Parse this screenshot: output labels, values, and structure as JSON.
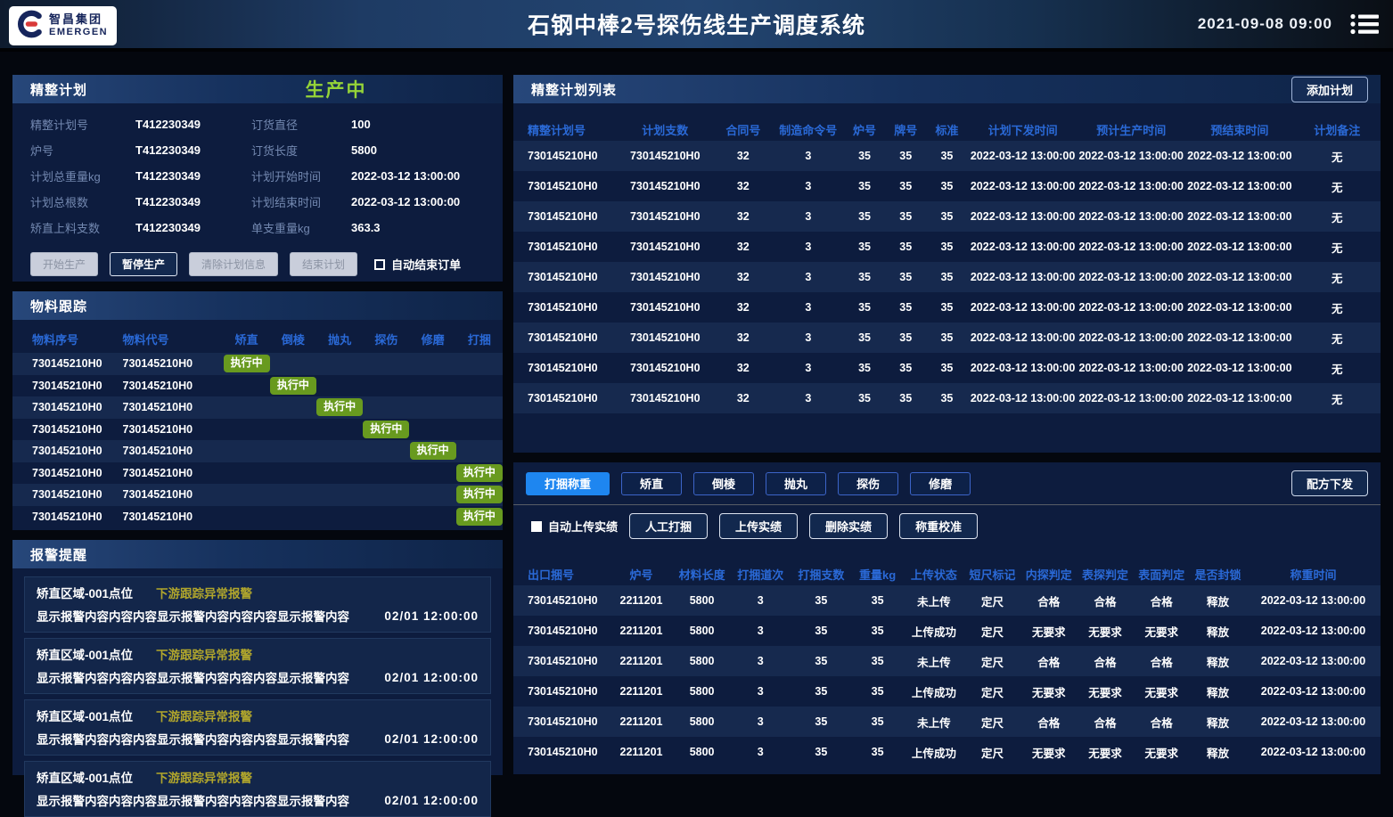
{
  "header": {
    "logo": {
      "company_cn": "智昌集团",
      "company_en": "EMERGEN"
    },
    "title": "石钢中棒2号探伤线生产调度系统",
    "datetime": "2021-09-08  09:00"
  },
  "colors": {
    "status_green": "#95d438",
    "badge_green": "#689a1f",
    "alarm_yellow": "#b1a62c",
    "active_tab_blue": "#1e86f0",
    "table_header_blue": "#2a69d6"
  },
  "finishing_plan": {
    "title": "精整计划",
    "status": "生产中",
    "fields_left": [
      {
        "label": "精整计划号",
        "value": "T412230349"
      },
      {
        "label": "炉号",
        "value": "T412230349"
      },
      {
        "label": "计划总重量kg",
        "value": "T412230349"
      },
      {
        "label": "计划总根数",
        "value": "T412230349"
      },
      {
        "label": "矫直上料支数",
        "value": "T412230349"
      }
    ],
    "fields_right": [
      {
        "label": "订货直径",
        "value": "100"
      },
      {
        "label": "订货长度",
        "value": "5800"
      },
      {
        "label": "计划开始时间",
        "value": "2022-03-12 13:00:00"
      },
      {
        "label": "计划结束时间",
        "value": "2022-03-12 13:00:00"
      },
      {
        "label": "单支重量kg",
        "value": "363.3"
      }
    ],
    "buttons": [
      {
        "label": "开始生产",
        "state": "disabled"
      },
      {
        "label": "暂停生产",
        "state": "enabled"
      },
      {
        "label": "清除计划信息",
        "state": "disabled"
      },
      {
        "label": "结束计划",
        "state": "disabled"
      }
    ],
    "checkbox_label": "自动结束订单"
  },
  "material_tracking": {
    "title": "物料跟踪",
    "columns": [
      "物料序号",
      "物料代号",
      "矫直",
      "倒棱",
      "抛丸",
      "探伤",
      "修磨",
      "打捆"
    ],
    "badge_label": "执行中",
    "rows": [
      {
        "seq": "730145210H0",
        "code": "730145210H0",
        "active_step": 0
      },
      {
        "seq": "730145210H0",
        "code": "730145210H0",
        "active_step": 1
      },
      {
        "seq": "730145210H0",
        "code": "730145210H0",
        "active_step": 2
      },
      {
        "seq": "730145210H0",
        "code": "730145210H0",
        "active_step": 3
      },
      {
        "seq": "730145210H0",
        "code": "730145210H0",
        "active_step": 4
      },
      {
        "seq": "730145210H0",
        "code": "730145210H0",
        "active_step": 5
      },
      {
        "seq": "730145210H0",
        "code": "730145210H0",
        "active_step": 5
      },
      {
        "seq": "730145210H0",
        "code": "730145210H0",
        "active_step": 5
      }
    ]
  },
  "alarms": {
    "title": "报警提醒",
    "items": [
      {
        "location": "矫直区域-001点位",
        "type": "下游跟踪异常报警",
        "content": "显示报警内容内容内容显示报警内容内容内容显示报警内容",
        "time": "02/01  12:00:00"
      },
      {
        "location": "矫直区域-001点位",
        "type": "下游跟踪异常报警",
        "content": "显示报警内容内容内容显示报警内容内容内容显示报警内容",
        "time": "02/01  12:00:00"
      },
      {
        "location": "矫直区域-001点位",
        "type": "下游跟踪异常报警",
        "content": "显示报警内容内容内容显示报警内容内容内容显示报警内容",
        "time": "02/01  12:00:00"
      },
      {
        "location": "矫直区域-001点位",
        "type": "下游跟踪异常报警",
        "content": "显示报警内容内容内容显示报警内容内容内容显示报警内容",
        "time": "02/01  12:00:00"
      }
    ]
  },
  "plan_list": {
    "title": "精整计划列表",
    "add_button": "添加计划",
    "columns": [
      "精整计划号",
      "计划支数",
      "合同号",
      "制造命令号",
      "炉号",
      "牌号",
      "标准",
      "计划下发时间",
      "预计生产时间",
      "预结束时间",
      "计划备注"
    ],
    "rows": [
      [
        "730145210H0",
        "730145210H0",
        "32",
        "3",
        "35",
        "35",
        "35",
        "2022-03-12 13:00:00",
        "2022-03-12 13:00:00",
        "2022-03-12 13:00:00",
        "无"
      ],
      [
        "730145210H0",
        "730145210H0",
        "32",
        "3",
        "35",
        "35",
        "35",
        "2022-03-12 13:00:00",
        "2022-03-12 13:00:00",
        "2022-03-12 13:00:00",
        "无"
      ],
      [
        "730145210H0",
        "730145210H0",
        "32",
        "3",
        "35",
        "35",
        "35",
        "2022-03-12 13:00:00",
        "2022-03-12 13:00:00",
        "2022-03-12 13:00:00",
        "无"
      ],
      [
        "730145210H0",
        "730145210H0",
        "32",
        "3",
        "35",
        "35",
        "35",
        "2022-03-12 13:00:00",
        "2022-03-12 13:00:00",
        "2022-03-12 13:00:00",
        "无"
      ],
      [
        "730145210H0",
        "730145210H0",
        "32",
        "3",
        "35",
        "35",
        "35",
        "2022-03-12 13:00:00",
        "2022-03-12 13:00:00",
        "2022-03-12 13:00:00",
        "无"
      ],
      [
        "730145210H0",
        "730145210H0",
        "32",
        "3",
        "35",
        "35",
        "35",
        "2022-03-12 13:00:00",
        "2022-03-12 13:00:00",
        "2022-03-12 13:00:00",
        "无"
      ],
      [
        "730145210H0",
        "730145210H0",
        "32",
        "3",
        "35",
        "35",
        "35",
        "2022-03-12 13:00:00",
        "2022-03-12 13:00:00",
        "2022-03-12 13:00:00",
        "无"
      ],
      [
        "730145210H0",
        "730145210H0",
        "32",
        "3",
        "35",
        "35",
        "35",
        "2022-03-12 13:00:00",
        "2022-03-12 13:00:00",
        "2022-03-12 13:00:00",
        "无"
      ],
      [
        "730145210H0",
        "730145210H0",
        "32",
        "3",
        "35",
        "35",
        "35",
        "2022-03-12 13:00:00",
        "2022-03-12 13:00:00",
        "2022-03-12 13:00:00",
        "无"
      ]
    ]
  },
  "process_panel": {
    "tabs": [
      "打捆称重",
      "矫直",
      "倒棱",
      "抛丸",
      "探伤",
      "修磨"
    ],
    "active_tab": 0,
    "recipe_button": "配方下发",
    "auto_upload_label": "自动上传实绩",
    "action_buttons": [
      "人工打捆",
      "上传实绩",
      "删除实绩",
      "称重校准"
    ],
    "table": {
      "columns": [
        "出口捆号",
        "炉号",
        "材料长度",
        "打捆道次",
        "打捆支数",
        "重量kg",
        "上传状态",
        "短尺标记",
        "内探判定",
        "表探判定",
        "表面判定",
        "是否封锁",
        "称重时间"
      ],
      "rows": [
        [
          "730145210H0",
          "2211201",
          "5800",
          "3",
          "35",
          "35",
          "未上传",
          "定尺",
          "合格",
          "合格",
          "合格",
          "释放",
          "2022-03-12 13:00:00"
        ],
        [
          "730145210H0",
          "2211201",
          "5800",
          "3",
          "35",
          "35",
          "上传成功",
          "定尺",
          "无要求",
          "无要求",
          "无要求",
          "释放",
          "2022-03-12 13:00:00"
        ],
        [
          "730145210H0",
          "2211201",
          "5800",
          "3",
          "35",
          "35",
          "未上传",
          "定尺",
          "合格",
          "合格",
          "合格",
          "释放",
          "2022-03-12 13:00:00"
        ],
        [
          "730145210H0",
          "2211201",
          "5800",
          "3",
          "35",
          "35",
          "上传成功",
          "定尺",
          "无要求",
          "无要求",
          "无要求",
          "释放",
          "2022-03-12 13:00:00"
        ],
        [
          "730145210H0",
          "2211201",
          "5800",
          "3",
          "35",
          "35",
          "未上传",
          "定尺",
          "合格",
          "合格",
          "合格",
          "释放",
          "2022-03-12 13:00:00"
        ],
        [
          "730145210H0",
          "2211201",
          "5800",
          "3",
          "35",
          "35",
          "上传成功",
          "定尺",
          "无要求",
          "无要求",
          "无要求",
          "释放",
          "2022-03-12 13:00:00"
        ]
      ]
    }
  }
}
